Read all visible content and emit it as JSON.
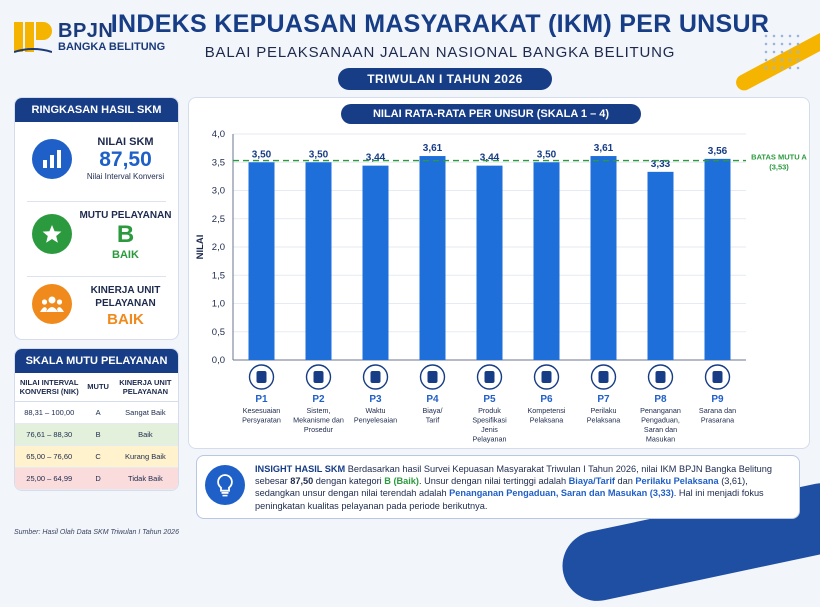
{
  "brand": {
    "name": "BPJN",
    "region": "BANGKA BELITUNG"
  },
  "header": {
    "title": "INDEKS KEPUASAN MASYARAKAT (IKM) PER UNSUR",
    "subtitle": "BALAI PELAKSANAAN JALAN NASIONAL BANGKA BELITUNG",
    "period": "TRIWULAN I TAHUN 2026"
  },
  "summary": {
    "heading": "RINGKASAN HASIL SKM",
    "nilai_label": "NILAI SKM",
    "nilai_value": "87,50",
    "nilai_caption": "Nilai Interval Konversi",
    "mutu_label": "MUTU PELAYANAN",
    "mutu_value": "B",
    "mutu_caption": "BAIK",
    "kinerja_label1": "KINERJA UNIT",
    "kinerja_label2": "PELAYANAN",
    "kinerja_value": "BAIK",
    "colors": {
      "blue": "#1f5fc8",
      "green": "#2b9a3e",
      "orange": "#f08a1c"
    },
    "icons": [
      "bar-chart-icon",
      "star-icon",
      "people-icon"
    ]
  },
  "scale": {
    "heading": "SKALA MUTU PELAYANAN",
    "headers": [
      "NILAI INTERVAL KONVERSI (NIK)",
      "MUTU",
      "KINERJA UNIT PELAYANAN"
    ],
    "rows": [
      {
        "range": "88,31 – 100,00",
        "mutu": "A",
        "kinerja": "Sangat Baik",
        "color": "#ffffff"
      },
      {
        "range": "76,61 – 88,30",
        "mutu": "B",
        "kinerja": "Baik",
        "color": "#e3f1dc"
      },
      {
        "range": "65,00 – 76,60",
        "mutu": "C",
        "kinerja": "Kurang Baik",
        "color": "#fff2cc"
      },
      {
        "range": "25,00 – 64,99",
        "mutu": "D",
        "kinerja": "Tidak Baik",
        "color": "#fbdcdc"
      }
    ]
  },
  "chart_data": {
    "type": "bar",
    "title": "NILAI RATA-RATA PER UNSUR (SKALA 1 – 4)",
    "ylabel": "NILAI",
    "ylim": [
      0,
      4
    ],
    "yticks": [
      "0,0",
      "0,5",
      "1,0",
      "1,5",
      "2,0",
      "2,5",
      "3,0",
      "3,5",
      "4,0"
    ],
    "categories": [
      "P1",
      "P2",
      "P3",
      "P4",
      "P5",
      "P6",
      "P7",
      "P8",
      "P9"
    ],
    "values": [
      3.5,
      3.5,
      3.44,
      3.61,
      3.44,
      3.5,
      3.61,
      3.33,
      3.56
    ],
    "value_labels": [
      "3,50",
      "3,50",
      "3,44",
      "3,61",
      "3,44",
      "3,50",
      "3,61",
      "3,33",
      "3,56"
    ],
    "category_names": [
      [
        "Kesesuaian",
        "Persyaratan"
      ],
      [
        "Sistem,",
        "Mekanisme dan",
        "Prosedur"
      ],
      [
        "Waktu",
        "Penyelesaian"
      ],
      [
        "Biaya/",
        "Tarif"
      ],
      [
        "Produk",
        "Spesifikasi",
        "Jenis",
        "Pelayanan"
      ],
      [
        "Kompetensi",
        "Pelaksana"
      ],
      [
        "Perilaku",
        "Pelaksana"
      ],
      [
        "Penanganan",
        "Pengaduan,",
        "Saran dan",
        "Masukan"
      ],
      [
        "Sarana dan",
        "Prasarana"
      ]
    ],
    "category_icons": [
      "clipboard-icon",
      "gears-icon",
      "clock-icon",
      "money-bag-icon",
      "box-icon",
      "person-badge-icon",
      "people-icon",
      "chat-bubble-icon",
      "building-icon"
    ],
    "threshold": {
      "value": 3.53,
      "label1": "BATAS MUTU A",
      "label2": "(3,53)"
    },
    "bar_color": "#1f6fdb",
    "threshold_color": "#2b9a3e"
  },
  "insight": {
    "title": "INSIGHT HASIL SKM",
    "segments": [
      {
        "t": "Berdasarkan hasil Survei Kepuasan Masyarakat Triwulan I Tahun 2026, nilai IKM BPJN Bangka Belitung sebesar ",
        "s": "n"
      },
      {
        "t": "87,50",
        "s": "b"
      },
      {
        "t": " dengan kategori ",
        "s": "n"
      },
      {
        "t": "B (Baik)",
        "s": "g"
      },
      {
        "t": ". Unsur dengan nilai tertinggi adalah ",
        "s": "n"
      },
      {
        "t": "Biaya/Tarif",
        "s": "bl"
      },
      {
        "t": " dan ",
        "s": "n"
      },
      {
        "t": "Perilaku Pelaksana",
        "s": "bl"
      },
      {
        "t": " (3,61), sedangkan unsur dengan nilai terendah adalah ",
        "s": "n"
      },
      {
        "t": "Penanganan Pengaduan, Saran dan Masukan (3,33)",
        "s": "bl"
      },
      {
        "t": ". Hal ini menjadi fokus peningkatan kualitas pelayanan pada periode berikutnya.",
        "s": "n"
      }
    ]
  },
  "source": "Sumber: Hasil Olah Data SKM Triwulan I Tahun 2026"
}
